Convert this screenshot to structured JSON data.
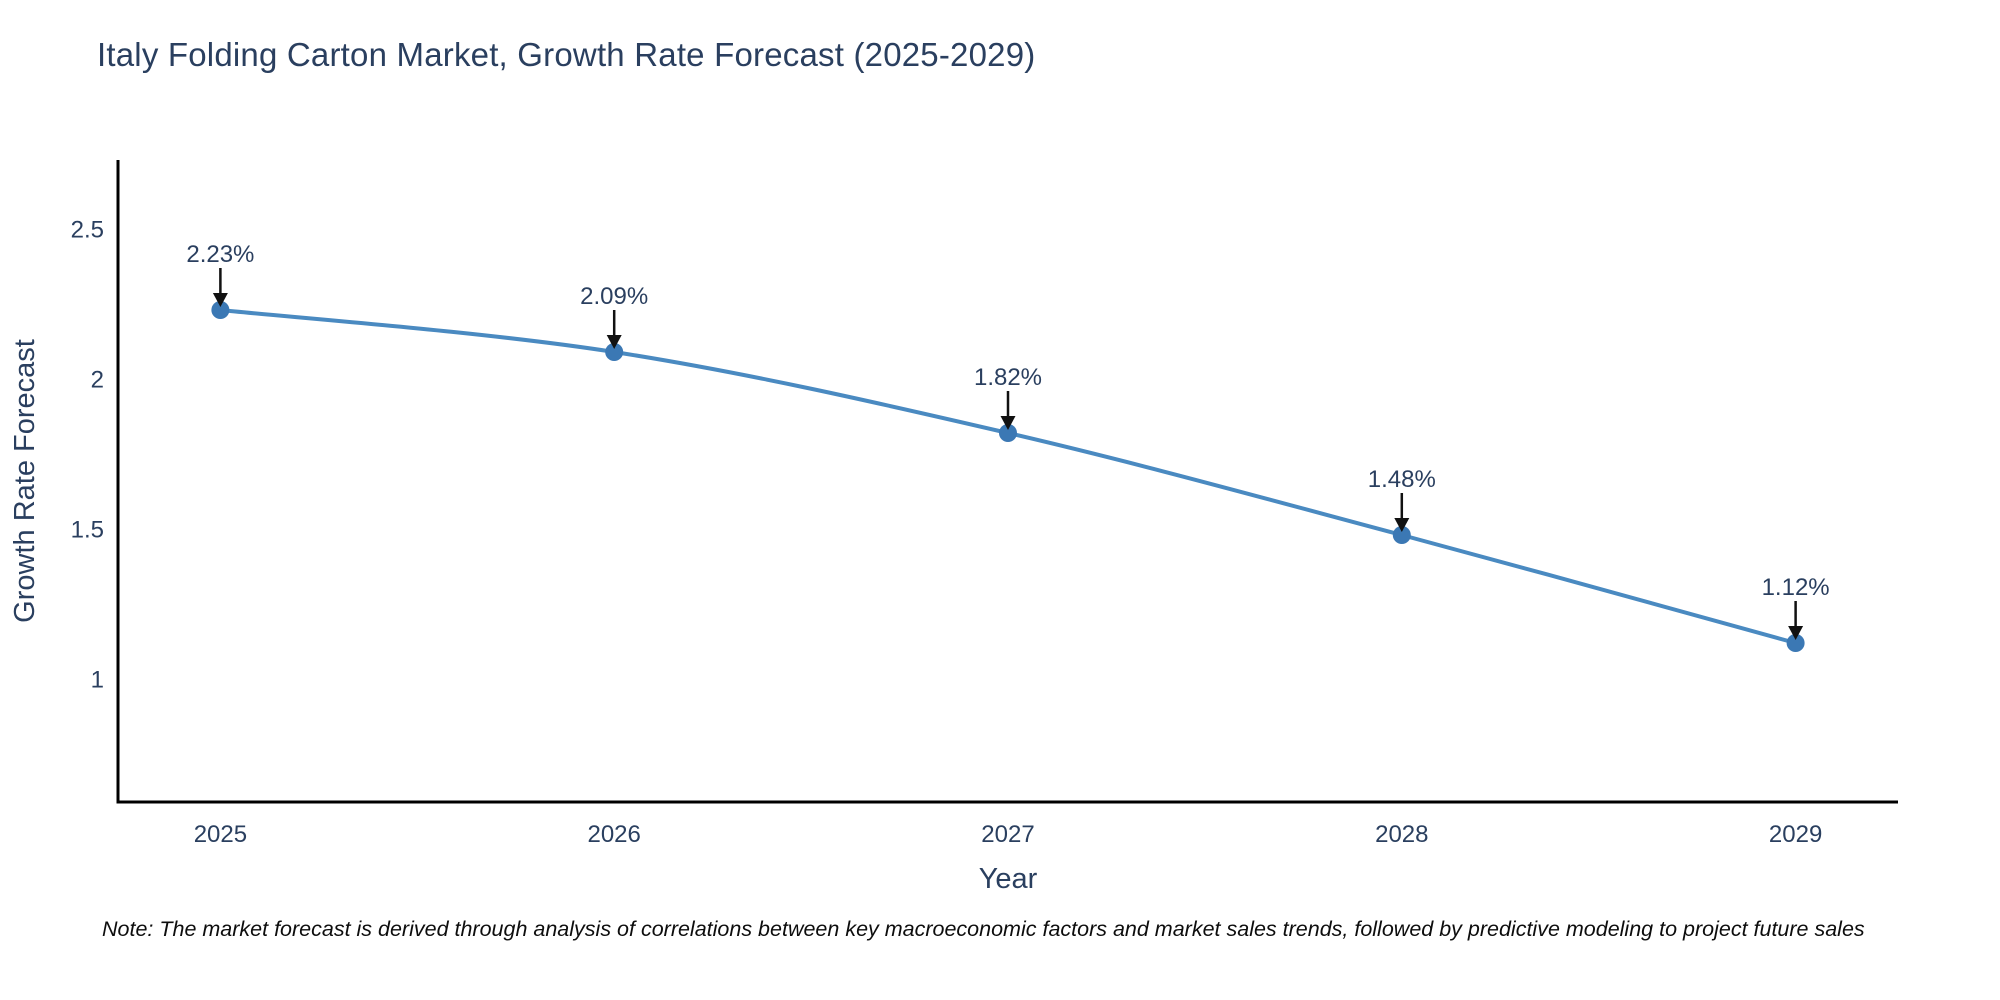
{
  "note": "Note: The market forecast is derived through analysis of correlations between key macroeconomic factors and market sales trends, followed by predictive modeling to project future sales",
  "chart_data": {
    "type": "line",
    "title": "Italy Folding Carton Market, Growth Rate Forecast (2025-2029)",
    "xlabel": "Year",
    "ylabel": "Growth Rate Forecast",
    "x": [
      2025,
      2026,
      2027,
      2028,
      2029
    ],
    "x_tick_labels": [
      "2025",
      "2026",
      "2027",
      "2028",
      "2029"
    ],
    "series": [
      {
        "name": "Growth Rate Forecast",
        "values": [
          2.23,
          2.09,
          1.82,
          1.48,
          1.12
        ]
      }
    ],
    "point_labels": [
      "2.23%",
      "2.09%",
      "1.82%",
      "1.48%",
      "1.12%"
    ],
    "y_ticks": [
      1,
      1.5,
      2,
      2.5
    ],
    "y_tick_labels": [
      "1",
      "1.5",
      "2",
      "2.5"
    ],
    "ylim": [
      0.59,
      2.73
    ],
    "xlim": [
      2024.74,
      2029.26
    ],
    "grid": false,
    "legend": "none",
    "line_shape": "spline",
    "colors": {
      "line": "#4a8ac1",
      "marker": "#3b78b4",
      "axis_line": "#000000",
      "text": "#2a3f5f",
      "annotation_text": "#2a3f5f",
      "arrow": "#111111",
      "note_text": "#0d0d0d",
      "background": "#ffffff"
    }
  }
}
